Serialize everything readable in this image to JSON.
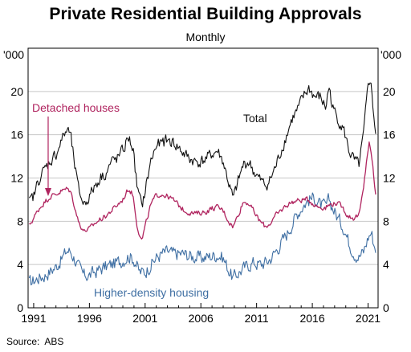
{
  "header": {
    "title": "Private Residential Building Approvals",
    "subtitle": "Monthly",
    "source_label": "Source:",
    "source_value": "ABS"
  },
  "colors": {
    "total": "#111111",
    "detached": "#b0245f",
    "higher_density": "#3f6fa3",
    "grid": "#c8c8c8"
  },
  "chart_data": {
    "type": "line",
    "title": "Private Residential Building Approvals",
    "subtitle": "Monthly",
    "unit_left": "'000",
    "unit_right": "'000",
    "xlim": [
      1990.5,
      2021.9
    ],
    "ylim": [
      0,
      24
    ],
    "x_ticks": [
      1991,
      1996,
      2001,
      2006,
      2011,
      2016,
      2021
    ],
    "x_tick_labels": [
      "1991",
      "1996",
      "2001",
      "2006",
      "2011",
      "2016",
      "2021"
    ],
    "y_ticks": [
      0,
      4,
      8,
      12,
      16,
      20
    ],
    "y_tick_labels": [
      "0",
      "4",
      "8",
      "12",
      "16",
      "20"
    ],
    "grid": true,
    "annotations": [
      {
        "text": "Detached houses",
        "series": "detached",
        "arrow_to": [
          1992.3,
          10.4
        ]
      },
      {
        "text": "Total",
        "series": "total"
      },
      {
        "text": "Higher-density housing",
        "series": "higher_density"
      }
    ],
    "series": [
      {
        "key": "total",
        "name": "Total",
        "noise": 0.8,
        "points": [
          [
            1990.6,
            9.7
          ],
          [
            1991.0,
            10.3
          ],
          [
            1991.5,
            12.0
          ],
          [
            1992.0,
            12.8
          ],
          [
            1992.5,
            13.6
          ],
          [
            1993.0,
            14.2
          ],
          [
            1993.5,
            15.5
          ],
          [
            1994.0,
            16.5
          ],
          [
            1994.3,
            16.0
          ],
          [
            1994.7,
            13.0
          ],
          [
            1995.0,
            11.0
          ],
          [
            1995.5,
            9.6
          ],
          [
            1996.0,
            10.3
          ],
          [
            1996.5,
            11.3
          ],
          [
            1997.0,
            12.1
          ],
          [
            1997.5,
            12.5
          ],
          [
            1998.0,
            13.5
          ],
          [
            1998.5,
            13.8
          ],
          [
            1999.0,
            14.5
          ],
          [
            1999.5,
            15.8
          ],
          [
            1999.9,
            14.8
          ],
          [
            2000.3,
            11.0
          ],
          [
            2000.7,
            9.3
          ],
          [
            2001.0,
            10.8
          ],
          [
            2001.5,
            13.5
          ],
          [
            2002.0,
            15.0
          ],
          [
            2002.5,
            15.2
          ],
          [
            2003.0,
            15.5
          ],
          [
            2003.5,
            15.3
          ],
          [
            2004.0,
            14.8
          ],
          [
            2004.5,
            14.2
          ],
          [
            2005.0,
            13.8
          ],
          [
            2005.5,
            13.5
          ],
          [
            2006.0,
            13.5
          ],
          [
            2006.5,
            13.8
          ],
          [
            2007.0,
            14.2
          ],
          [
            2007.5,
            14.5
          ],
          [
            2008.0,
            13.5
          ],
          [
            2008.5,
            11.5
          ],
          [
            2008.9,
            10.0
          ],
          [
            2009.3,
            11.5
          ],
          [
            2009.8,
            13.2
          ],
          [
            2010.3,
            13.5
          ],
          [
            2010.8,
            12.5
          ],
          [
            2011.3,
            11.8
          ],
          [
            2011.8,
            11.3
          ],
          [
            2012.2,
            11.8
          ],
          [
            2012.7,
            13.0
          ],
          [
            2013.2,
            14.5
          ],
          [
            2013.7,
            16.0
          ],
          [
            2014.2,
            17.5
          ],
          [
            2014.7,
            18.3
          ],
          [
            2015.2,
            19.5
          ],
          [
            2015.7,
            20.3
          ],
          [
            2016.2,
            19.5
          ],
          [
            2016.7,
            19.5
          ],
          [
            2017.2,
            18.5
          ],
          [
            2017.5,
            20.5
          ],
          [
            2017.8,
            18.5
          ],
          [
            2018.3,
            17.5
          ],
          [
            2018.8,
            16.5
          ],
          [
            2019.3,
            14.5
          ],
          [
            2019.8,
            13.5
          ],
          [
            2020.2,
            13.2
          ],
          [
            2020.6,
            16.0
          ],
          [
            2021.0,
            20.5
          ],
          [
            2021.2,
            21.3
          ],
          [
            2021.5,
            18.0
          ],
          [
            2021.7,
            16.0
          ]
        ]
      },
      {
        "key": "detached",
        "name": "Detached houses",
        "noise": 0.35,
        "points": [
          [
            1990.6,
            7.6
          ],
          [
            1991.0,
            8.3
          ],
          [
            1991.5,
            9.2
          ],
          [
            1992.0,
            9.8
          ],
          [
            1992.5,
            10.3
          ],
          [
            1993.0,
            10.5
          ],
          [
            1993.5,
            10.8
          ],
          [
            1994.0,
            11.0
          ],
          [
            1994.3,
            10.8
          ],
          [
            1994.7,
            9.3
          ],
          [
            1995.0,
            8.0
          ],
          [
            1995.5,
            7.1
          ],
          [
            1996.0,
            7.3
          ],
          [
            1996.5,
            7.8
          ],
          [
            1997.0,
            8.2
          ],
          [
            1997.5,
            8.5
          ],
          [
            1998.0,
            9.0
          ],
          [
            1998.5,
            9.5
          ],
          [
            1999.0,
            10.0
          ],
          [
            1999.5,
            11.0
          ],
          [
            1999.9,
            10.5
          ],
          [
            2000.3,
            7.5
          ],
          [
            2000.7,
            6.2
          ],
          [
            2001.0,
            7.5
          ],
          [
            2001.5,
            9.5
          ],
          [
            2002.0,
            10.4
          ],
          [
            2002.5,
            10.5
          ],
          [
            2003.0,
            10.3
          ],
          [
            2003.5,
            10.0
          ],
          [
            2004.0,
            9.5
          ],
          [
            2004.5,
            9.0
          ],
          [
            2005.0,
            8.8
          ],
          [
            2005.5,
            8.7
          ],
          [
            2006.0,
            8.8
          ],
          [
            2006.5,
            8.9
          ],
          [
            2007.0,
            9.2
          ],
          [
            2007.5,
            9.3
          ],
          [
            2008.0,
            9.0
          ],
          [
            2008.5,
            8.0
          ],
          [
            2008.9,
            7.5
          ],
          [
            2009.3,
            8.5
          ],
          [
            2009.8,
            9.8
          ],
          [
            2010.3,
            9.7
          ],
          [
            2010.8,
            8.8
          ],
          [
            2011.3,
            8.0
          ],
          [
            2011.8,
            7.5
          ],
          [
            2012.2,
            7.8
          ],
          [
            2012.7,
            8.5
          ],
          [
            2013.2,
            9.0
          ],
          [
            2013.7,
            9.5
          ],
          [
            2014.2,
            9.8
          ],
          [
            2014.7,
            9.9
          ],
          [
            2015.2,
            10.0
          ],
          [
            2015.7,
            10.0
          ],
          [
            2016.2,
            9.5
          ],
          [
            2016.7,
            9.3
          ],
          [
            2017.2,
            9.3
          ],
          [
            2017.7,
            9.6
          ],
          [
            2018.2,
            9.7
          ],
          [
            2018.7,
            9.3
          ],
          [
            2019.2,
            8.5
          ],
          [
            2019.7,
            8.3
          ],
          [
            2020.2,
            8.6
          ],
          [
            2020.6,
            11.0
          ],
          [
            2020.9,
            14.0
          ],
          [
            2021.1,
            15.2
          ],
          [
            2021.4,
            13.5
          ],
          [
            2021.6,
            11.0
          ],
          [
            2021.7,
            10.4
          ]
        ]
      },
      {
        "key": "higher_density",
        "name": "Higher-density housing",
        "noise": 0.9,
        "points": [
          [
            1990.6,
            2.3
          ],
          [
            1991.0,
            2.5
          ],
          [
            1991.5,
            2.8
          ],
          [
            1992.0,
            3.0
          ],
          [
            1992.5,
            3.4
          ],
          [
            1993.0,
            3.8
          ],
          [
            1993.5,
            4.5
          ],
          [
            1994.0,
            5.3
          ],
          [
            1994.3,
            5.2
          ],
          [
            1994.7,
            4.5
          ],
          [
            1995.0,
            3.8
          ],
          [
            1995.5,
            3.0
          ],
          [
            1996.0,
            3.0
          ],
          [
            1996.5,
            3.3
          ],
          [
            1997.0,
            3.6
          ],
          [
            1997.5,
            3.8
          ],
          [
            1998.0,
            4.0
          ],
          [
            1998.5,
            4.2
          ],
          [
            1999.0,
            4.4
          ],
          [
            1999.5,
            4.8
          ],
          [
            2000.0,
            4.5
          ],
          [
            2000.5,
            3.3
          ],
          [
            2001.0,
            3.3
          ],
          [
            2001.5,
            4.0
          ],
          [
            2002.0,
            4.6
          ],
          [
            2002.5,
            5.0
          ],
          [
            2003.0,
            5.2
          ],
          [
            2003.5,
            5.0
          ],
          [
            2004.0,
            5.0
          ],
          [
            2004.5,
            5.0
          ],
          [
            2005.0,
            4.8
          ],
          [
            2005.5,
            4.7
          ],
          [
            2006.0,
            4.6
          ],
          [
            2006.5,
            4.7
          ],
          [
            2007.0,
            4.8
          ],
          [
            2007.5,
            4.9
          ],
          [
            2008.0,
            4.6
          ],
          [
            2008.5,
            3.5
          ],
          [
            2008.9,
            2.7
          ],
          [
            2009.3,
            3.2
          ],
          [
            2009.8,
            3.6
          ],
          [
            2010.3,
            4.0
          ],
          [
            2010.8,
            4.2
          ],
          [
            2011.3,
            4.0
          ],
          [
            2011.8,
            4.2
          ],
          [
            2012.2,
            4.5
          ],
          [
            2012.7,
            5.2
          ],
          [
            2013.2,
            6.0
          ],
          [
            2013.7,
            6.8
          ],
          [
            2014.2,
            7.8
          ],
          [
            2014.7,
            8.8
          ],
          [
            2015.2,
            9.5
          ],
          [
            2015.7,
            10.0
          ],
          [
            2016.2,
            10.2
          ],
          [
            2016.7,
            9.5
          ],
          [
            2017.2,
            9.3
          ],
          [
            2017.5,
            10.0
          ],
          [
            2017.8,
            9.3
          ],
          [
            2018.3,
            8.3
          ],
          [
            2018.8,
            7.5
          ],
          [
            2019.3,
            6.0
          ],
          [
            2019.8,
            5.0
          ],
          [
            2020.2,
            4.7
          ],
          [
            2020.6,
            5.2
          ],
          [
            2021.0,
            6.5
          ],
          [
            2021.3,
            7.0
          ],
          [
            2021.5,
            6.0
          ],
          [
            2021.7,
            5.5
          ]
        ]
      }
    ]
  }
}
